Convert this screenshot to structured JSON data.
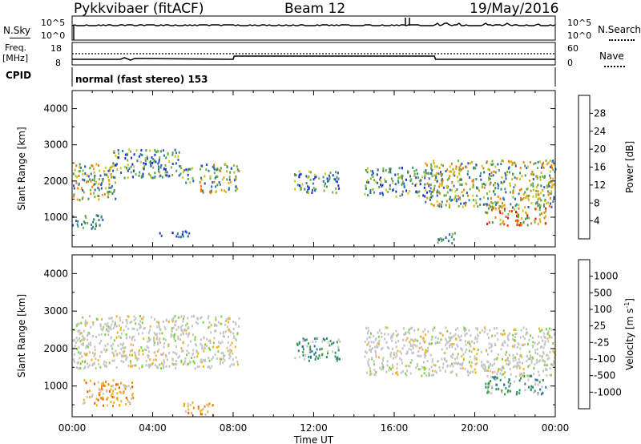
{
  "header": {
    "station": "Pykkvibaer (fitACF)",
    "beam": "Beam 12",
    "date": "19/May/2016"
  },
  "sky_panel": {
    "left_label": "N.Sky",
    "left_ticks": [
      "10^5",
      "10^0"
    ],
    "right_label": "N.Search",
    "right_ticks": [
      "10^5",
      "10^0"
    ]
  },
  "freq_panel": {
    "left_label_line1": "Freq.",
    "left_label_line2": "[MHz]",
    "left_ticks": [
      "18",
      "8"
    ],
    "right_label": "Nave",
    "right_ticks": [
      "60",
      "0"
    ]
  },
  "cpid": {
    "label": "CPID",
    "text": "normal (fast stereo) 153"
  },
  "x_axis": {
    "ticks": [
      "00:00",
      "04:00",
      "08:00",
      "12:00",
      "16:00",
      "20:00",
      "00:00"
    ],
    "label": "Time UT"
  },
  "chart_data": [
    {
      "type": "heatmap",
      "name": "power",
      "ylabel": "Slant Range [km]",
      "ylim": [
        180,
        4500
      ],
      "yticks": [
        1000,
        2000,
        3000,
        4000
      ],
      "xlim_hours": [
        0,
        24
      ],
      "colorbar": {
        "label": "Power [dB]",
        "ticks": [
          "4",
          "8",
          "12",
          "16",
          "20",
          "24",
          "28"
        ],
        "colors": [
          "#1b2bd8",
          "#2a56b8",
          "#2f7f8c",
          "#4b9a5a",
          "#6fb43a",
          "#c9c81c",
          "#e6a612",
          "#ee7b0e",
          "#e8420c",
          "#d90f0f"
        ]
      },
      "echo_regions": [
        {
          "t": [
            0.0,
            2.2
          ],
          "r": [
            1500,
            2500
          ],
          "level": "mid-high"
        },
        {
          "t": [
            2.0,
            5.5
          ],
          "r": [
            2100,
            2900
          ],
          "level": "mid"
        },
        {
          "t": [
            5.5,
            6.0
          ],
          "r": [
            1900,
            2400
          ],
          "level": "mid"
        },
        {
          "t": [
            6.3,
            8.3
          ],
          "r": [
            1700,
            2500
          ],
          "level": "mid-high"
        },
        {
          "t": [
            0.0,
            1.5
          ],
          "r": [
            700,
            1100
          ],
          "level": "low-mid"
        },
        {
          "t": [
            4.3,
            5.8
          ],
          "r": [
            450,
            650
          ],
          "level": "low"
        },
        {
          "t": [
            11.0,
            13.3
          ],
          "r": [
            1700,
            2300
          ],
          "level": "mid"
        },
        {
          "t": [
            14.5,
            18.0
          ],
          "r": [
            1600,
            2400
          ],
          "level": "mid"
        },
        {
          "t": [
            17.5,
            24.0
          ],
          "r": [
            1300,
            2600
          ],
          "level": "mid-high"
        },
        {
          "t": [
            20.5,
            23.5
          ],
          "r": [
            800,
            1300
          ],
          "level": "high"
        },
        {
          "t": [
            18.0,
            19.0
          ],
          "r": [
            300,
            600
          ],
          "level": "low-mid"
        }
      ]
    },
    {
      "type": "heatmap",
      "name": "velocity",
      "ylabel": "Slant Range [km]",
      "ylim": [
        180,
        4500
      ],
      "yticks": [
        1000,
        2000,
        3000,
        4000
      ],
      "xlim_hours": [
        0,
        24
      ],
      "colorbar": {
        "label": "Velocity [m s^-1]",
        "ticks": [
          "1000",
          "500",
          "100",
          "25",
          "-25",
          "-100",
          "-500",
          "-1000"
        ],
        "colors": [
          "#2433c4",
          "#2e6fa8",
          "#2f8a6a",
          "#3aa13a",
          "#7ad33c",
          "#c4c4c4",
          "#f2b31a",
          "#ee8a10",
          "#e65a0c",
          "#d81010"
        ]
      },
      "echo_regions": [
        {
          "t": [
            0.0,
            8.3
          ],
          "r": [
            1500,
            2900
          ],
          "level": "near-zero"
        },
        {
          "t": [
            11.0,
            13.3
          ],
          "r": [
            1700,
            2300
          ],
          "level": "toward"
        },
        {
          "t": [
            14.5,
            24.0
          ],
          "r": [
            1300,
            2600
          ],
          "level": "near-zero"
        },
        {
          "t": [
            20.5,
            23.5
          ],
          "r": [
            800,
            1300
          ],
          "level": "toward"
        },
        {
          "t": [
            0.5,
            3.0
          ],
          "r": [
            500,
            1200
          ],
          "level": "away"
        },
        {
          "t": [
            5.5,
            7.0
          ],
          "r": [
            250,
            600
          ],
          "level": "away"
        }
      ]
    }
  ]
}
